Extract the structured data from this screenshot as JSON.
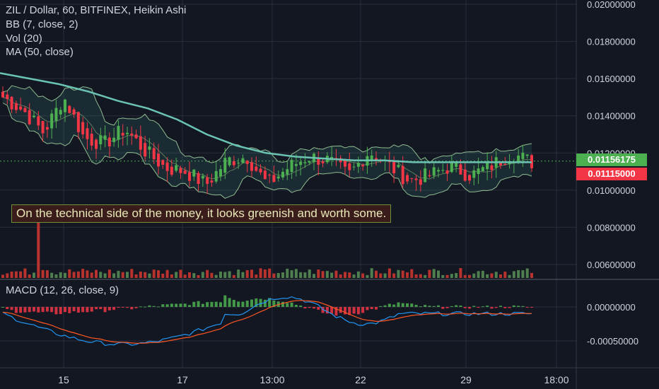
{
  "legend": {
    "symbol_line": "ZIL / Dollar, 60, BITFINEX, Heikin Ashi",
    "bb": "BB (7, close, 2)",
    "vol": "Vol (20)",
    "ma": "MA (50, close)",
    "macd": "MACD (12, 26, close, 9)"
  },
  "annotation": "On the technical side of the money, it looks greenish and worth some.",
  "price_tags": {
    "last_price": "0.01156175",
    "last_price_color": "#4caf50",
    "other_price": "0.01115000",
    "other_price_color": "#f23645"
  },
  "colors": {
    "background": "#131722",
    "up": "#4caf50",
    "down": "#f23645",
    "ma": "#6bc4b3",
    "bb": "#8fbc8f",
    "macd_line": "#2196f3",
    "signal_line": "#ff5722"
  },
  "chart_data": [
    {
      "type": "candlestick",
      "title": "ZIL / Dollar, 60, BITFINEX, Heikin Ashi",
      "y_ticks": [
        "0.02000000",
        "0.01800000",
        "0.01600000",
        "0.01400000",
        "0.01200000",
        "0.01000000",
        "0.00800000",
        "0.00600000"
      ],
      "ylim": [
        0.005,
        0.0205
      ],
      "x_ticks": [
        "15",
        "17",
        "13:00",
        "22",
        "29",
        "18:00"
      ],
      "grid": true,
      "series": [
        {
          "name": "MA (50, close)",
          "values": [
            0.0163,
            0.016,
            0.0157,
            0.0153,
            0.0148,
            0.0144,
            0.0138,
            0.013,
            0.0124,
            0.012,
            0.0118,
            0.0117,
            0.0116,
            0.0116,
            0.0115,
            0.0115,
            0.0115,
            0.0115,
            0.0115
          ]
        }
      ],
      "close_path": [
        0.015,
        0.0143,
        0.0131,
        0.015,
        0.0128,
        0.0125,
        0.0133,
        0.0121,
        0.0112,
        0.011,
        0.0103,
        0.0116,
        0.0118,
        0.0103,
        0.0112,
        0.0118,
        0.0116,
        0.0108,
        0.0121,
        0.0113,
        0.0105,
        0.0108,
        0.0113,
        0.0108,
        0.0113,
        0.012,
        0.0115
      ]
    },
    {
      "type": "bar",
      "title": "Vol (20)",
      "note": "volume histogram, large spike at the start"
    },
    {
      "type": "line",
      "title": "MACD (12, 26, close, 9)",
      "y_ticks": [
        "0.00000000",
        "-0.00050000"
      ],
      "ylim": [
        -0.0008,
        0.0003
      ]
    }
  ]
}
